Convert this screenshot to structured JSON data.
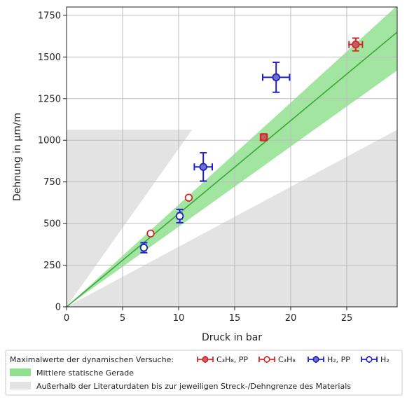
{
  "chart_data": {
    "type": "scatter",
    "xlabel": "Druck in bar",
    "ylabel": "Dehnung in µm/m",
    "xlim": [
      0,
      29.5
    ],
    "ylim": [
      0,
      1800
    ],
    "x_ticks": [
      0,
      5,
      10,
      15,
      20,
      25
    ],
    "y_ticks": [
      0,
      250,
      500,
      750,
      1000,
      1250,
      1500,
      1750
    ],
    "grid": true,
    "mean_line": {
      "slope": 55.9,
      "band_upper_slope": 61.3,
      "band_lower_slope": 48.1
    },
    "outside_regions": [
      {
        "points": [
          [
            0,
            0
          ],
          [
            11.2,
            1063
          ],
          [
            0,
            1063
          ]
        ]
      },
      {
        "points": [
          [
            0,
            0
          ],
          [
            29.5,
            1063
          ],
          [
            29.5,
            0
          ]
        ]
      }
    ],
    "series": [
      {
        "name": "C₃H₈, PP",
        "color": "#d62728",
        "marker": "filled",
        "points": [
          {
            "x": 17.6,
            "y": 1018,
            "xerr": 0.3,
            "yerr": 20
          },
          {
            "x": 25.8,
            "y": 1575,
            "xerr": 0.6,
            "yerr": 38
          }
        ]
      },
      {
        "name": "C₃H₈",
        "color": "#d62728",
        "marker": "open",
        "points": [
          {
            "x": 7.5,
            "y": 440,
            "xerr": 0,
            "yerr": 0
          },
          {
            "x": 10.9,
            "y": 655,
            "xerr": 0,
            "yerr": 0
          }
        ]
      },
      {
        "name": "H₂, PP",
        "color": "#1f1fd0",
        "marker": "filled",
        "points": [
          {
            "x": 12.2,
            "y": 840,
            "xerr": 0.8,
            "yerr": 85
          },
          {
            "x": 18.7,
            "y": 1378,
            "xerr": 1.2,
            "yerr": 90
          }
        ]
      },
      {
        "name": "H₂",
        "color": "#1f1fd0",
        "marker": "open",
        "points": [
          {
            "x": 6.9,
            "y": 355,
            "xerr": 0.2,
            "yerr": 30
          },
          {
            "x": 10.1,
            "y": 545,
            "xerr": 0.2,
            "yerr": 40
          }
        ]
      }
    ],
    "legend": {
      "placement": "bottom",
      "title": "Maximalwerte der dynamischen Versuche:",
      "band_label": "Mittlere statische Gerade",
      "region_label": "Außerhalb der Literaturdaten bis zur jeweiligen Streck-/Dehngrenze des Materials"
    },
    "colors": {
      "band_fill": "#90e090",
      "band_line": "#3aa83a",
      "region_fill": "#e3e3e3",
      "grid": "#bdbdbd"
    }
  }
}
